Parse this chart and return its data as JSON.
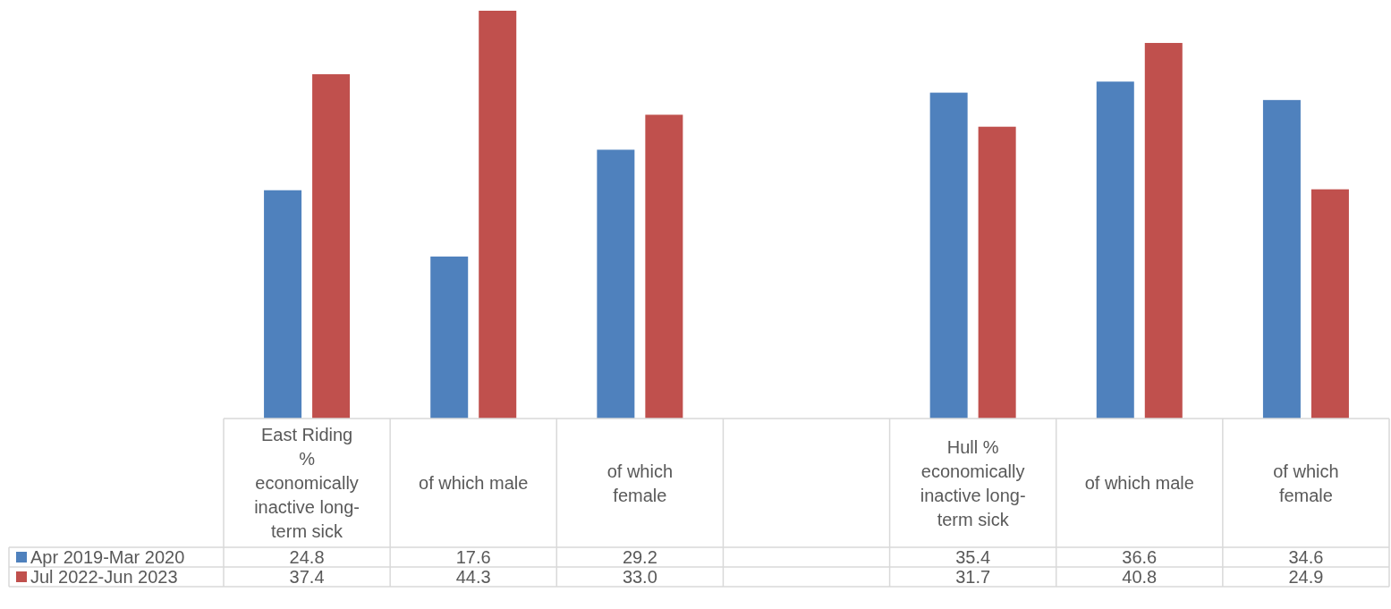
{
  "chart_data": {
    "type": "bar",
    "categories": [
      "East Riding % economically inactive long-term sick",
      "of which male",
      "of which female",
      null,
      "Hull % economically inactive long-term sick",
      "of which male",
      "of which female"
    ],
    "series": [
      {
        "name": "Apr 2019-Mar 2020",
        "color": "#4f81bd",
        "values": [
          24.8,
          17.6,
          29.2,
          null,
          35.4,
          36.6,
          34.6
        ],
        "value_labels": [
          "24.8",
          "17.6",
          "29.2",
          null,
          "35.4",
          "36.6",
          "34.6"
        ]
      },
      {
        "name": "Jul 2022-Jun 2023",
        "color": "#c0504d",
        "values": [
          37.4,
          44.3,
          33.0,
          null,
          31.7,
          40.8,
          24.9
        ],
        "value_labels": [
          "37.4",
          "44.3",
          "33.0",
          null,
          "31.7",
          "40.8",
          "24.9"
        ]
      }
    ],
    "relative": false,
    "legend": "bottom"
  }
}
